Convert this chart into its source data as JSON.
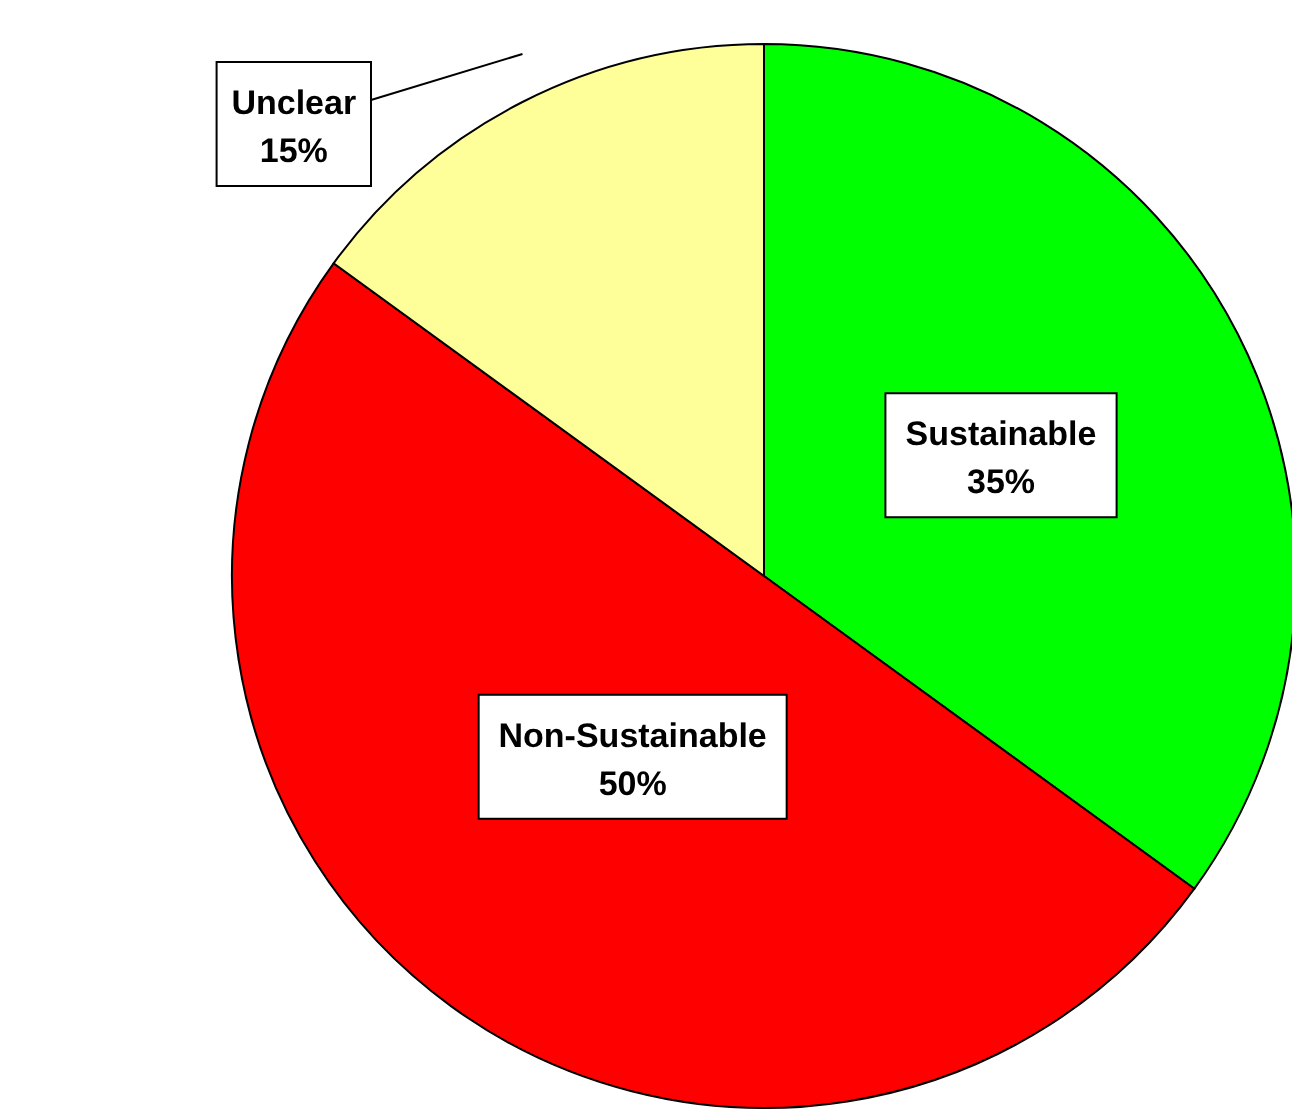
{
  "chart_data": {
    "type": "pie",
    "categories": [
      "Sustainable",
      "Non-Sustainable",
      "Unclear"
    ],
    "values": [
      35,
      50,
      15
    ],
    "colors": [
      "#00ff00",
      "#ff0000",
      "#ffff99"
    ],
    "value_labels": [
      "35%",
      "50%",
      "15%"
    ]
  }
}
